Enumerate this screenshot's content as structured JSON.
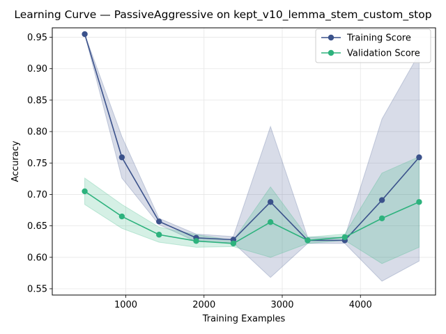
{
  "chart_data": {
    "type": "line",
    "title": "Learning Curve — PassiveAggressive on kept_v10_lemma_stem_custom_stop",
    "xlabel": "Training Examples",
    "ylabel": "Accuracy",
    "xlim": [
      60,
      4960
    ],
    "ylim": [
      0.54,
      0.965
    ],
    "xticks": [
      1000,
      2000,
      3000,
      4000
    ],
    "yticks": [
      0.55,
      0.6,
      0.65,
      0.7,
      0.75,
      0.8,
      0.85,
      0.9,
      0.95
    ],
    "grid": true,
    "legend_position": "top-right",
    "x": [
      475,
      950,
      1425,
      1900,
      2375,
      2850,
      3325,
      3800,
      4275,
      4750
    ],
    "series": [
      {
        "name": "Training Score",
        "color": "#3b528b",
        "values": [
          0.955,
          0.759,
          0.657,
          0.631,
          0.628,
          0.688,
          0.627,
          0.627,
          0.691,
          0.759
        ],
        "band_upper": [
          0.955,
          0.792,
          0.662,
          0.637,
          0.633,
          0.808,
          0.632,
          0.632,
          0.82,
          0.924
        ],
        "band_lower": [
          0.955,
          0.726,
          0.652,
          0.625,
          0.623,
          0.568,
          0.622,
          0.622,
          0.562,
          0.594
        ]
      },
      {
        "name": "Validation Score",
        "color": "#2db27d",
        "values": [
          0.705,
          0.665,
          0.636,
          0.626,
          0.622,
          0.656,
          0.627,
          0.632,
          0.662,
          0.688
        ],
        "band_upper": [
          0.726,
          0.684,
          0.648,
          0.636,
          0.627,
          0.712,
          0.632,
          0.637,
          0.734,
          0.76
        ],
        "band_lower": [
          0.684,
          0.646,
          0.624,
          0.616,
          0.617,
          0.6,
          0.622,
          0.627,
          0.59,
          0.616
        ]
      }
    ]
  }
}
